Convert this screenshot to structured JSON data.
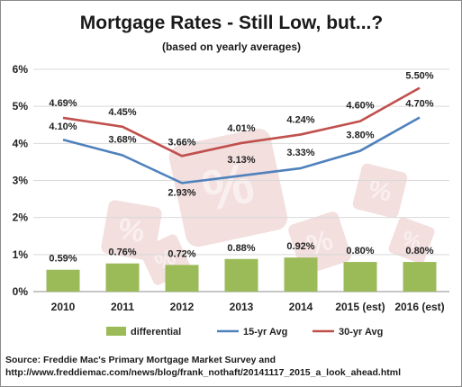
{
  "title": "Mortgage Rates - Still Low, but...?",
  "subtitle": "(based on yearly averages)",
  "colors": {
    "differential": "#9bbb59",
    "fifteen": "#4f81bd",
    "thirty": "#c0504d",
    "grid": "#d9d9d9",
    "watermark": "#e9c5c4"
  },
  "chart_data": {
    "type": "bar+line",
    "categories": [
      "2010",
      "2011",
      "2012",
      "2013",
      "2014",
      "2015 (est)",
      "2016 (est)"
    ],
    "ylim": [
      0,
      6
    ],
    "yticks": [
      "0%",
      "1%",
      "2%",
      "3%",
      "4%",
      "5%",
      "6%"
    ],
    "series": [
      {
        "name": "differential",
        "type": "bar",
        "values": [
          0.59,
          0.76,
          0.72,
          0.88,
          0.92,
          0.8,
          0.8
        ],
        "labels": [
          "0.59%",
          "0.76%",
          "0.72%",
          "0.88%",
          "0.92%",
          "0.80%",
          "0.80%"
        ]
      },
      {
        "name": "15-yr Avg",
        "type": "line",
        "values": [
          4.1,
          3.68,
          2.93,
          3.13,
          3.33,
          3.8,
          4.7
        ],
        "labels": [
          "4.10%",
          "3.68%",
          "2.93%",
          "3.13%",
          "3.33%",
          "3.80%",
          "4.70%"
        ]
      },
      {
        "name": "30-yr Avg",
        "type": "line",
        "values": [
          4.69,
          4.45,
          3.66,
          4.01,
          4.24,
          4.6,
          5.5
        ],
        "labels": [
          "4.69%",
          "4.45%",
          "3.66%",
          "4.01%",
          "4.24%",
          "4.60%",
          "5.50%"
        ]
      }
    ],
    "grid": true,
    "legend": "bottom"
  },
  "source": {
    "line1": "Source: Freddie Mac's Primary Mortgage Market Survey and",
    "line2": "http://www.freddiemac.com/news/blog/frank_nothaft/20141117_2015_a_look_ahead.html"
  }
}
